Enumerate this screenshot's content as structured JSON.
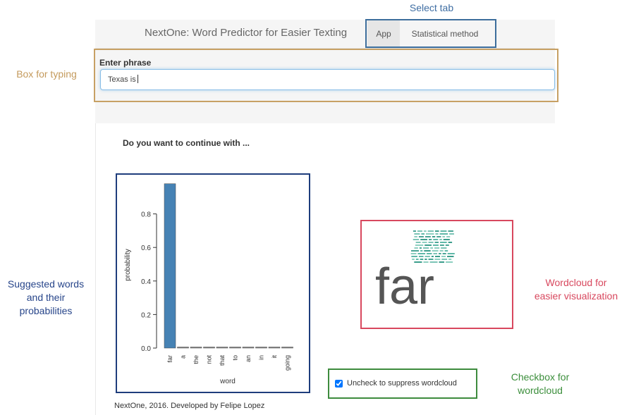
{
  "app": {
    "brand": "NextOne: Word Predictor for Easier Texting",
    "tabs": [
      {
        "label": "App",
        "active": true
      },
      {
        "label": "Statistical method",
        "active": false
      }
    ],
    "input": {
      "label": "Enter phrase",
      "value": "Texas is"
    },
    "question": "Do you want to continue with ...",
    "checkbox": {
      "label": "Uncheck to suppress wordcloud",
      "checked": true
    },
    "footer": "NextOne, 2016. Developed by Felipe Lopez"
  },
  "annotations": {
    "select_tab": "Select tab",
    "box_typing": "Box for typing",
    "suggested": [
      "Suggested words",
      "and their",
      "probabilities"
    ],
    "wordcloud": [
      "Wordcloud for",
      "easier visualization"
    ],
    "checkbox": [
      "Checkbox for",
      "wordcloud"
    ]
  },
  "colors": {
    "tab_box": "#3d6e9c",
    "typing_box": "#c7a064",
    "chart_box": "#1e3d7c",
    "wordcloud_box": "#d8485e",
    "checkbox_box": "#3d8b3d",
    "bar": "#4682b4",
    "annot_blue": "#3f6ea3",
    "annot_tan": "#c49a5c",
    "annot_navy": "#27458a",
    "annot_red": "#d8485e",
    "annot_green": "#3b8e3b"
  },
  "wordcloud": {
    "main_word": "far"
  },
  "chart_data": {
    "type": "bar",
    "categories": [
      "far",
      "a",
      "the",
      "not",
      "that",
      "to",
      "an",
      "in",
      "it",
      "going"
    ],
    "values": [
      0.98,
      0.003,
      0.003,
      0.003,
      0.003,
      0.003,
      0.003,
      0.003,
      0.003,
      0.003
    ],
    "xlabel": "word",
    "ylabel": "probability",
    "ylim": [
      0,
      1.0
    ],
    "yticks": [
      "0.0",
      "0.2",
      "0.4",
      "0.6",
      "0.8"
    ]
  }
}
